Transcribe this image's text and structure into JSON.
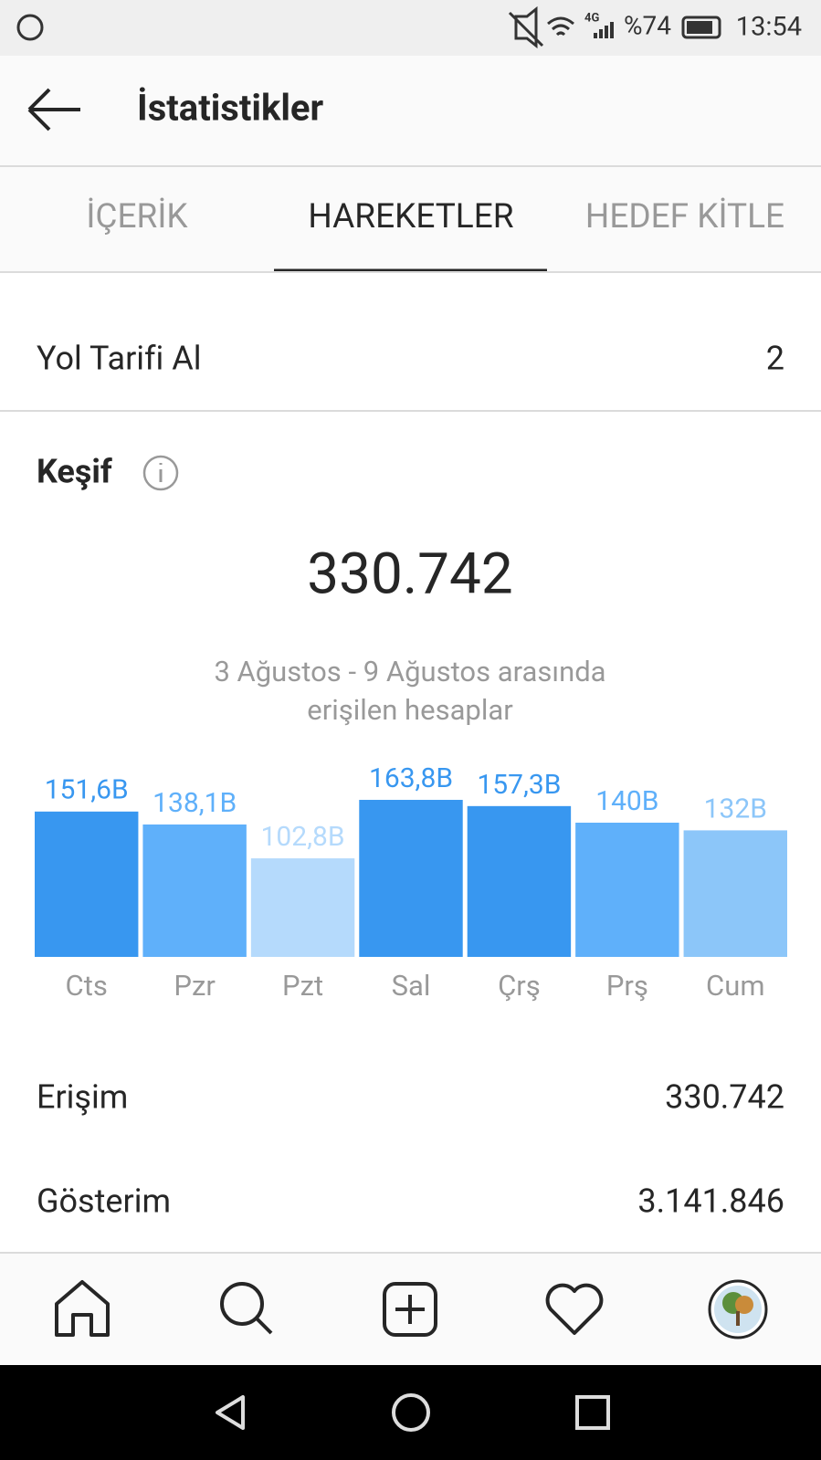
{
  "status_bar": {
    "network": "4G",
    "battery": "%74",
    "time": "13:54"
  },
  "header": {
    "title": "İstatistikler"
  },
  "tabs": [
    "İÇERİK",
    "HAREKETLER",
    "HEDEF KİTLE"
  ],
  "directions": {
    "label": "Yol Tarifi Al",
    "value": "2"
  },
  "discovery": {
    "title": "Keşif",
    "total": "330.742",
    "subtitle_lines": [
      "3 Ağustos - 9 Ağustos arasında",
      "erişilen hesaplar"
    ]
  },
  "chart_data": {
    "type": "bar",
    "categories": [
      "Cts",
      "Pzr",
      "Pzt",
      "Sal",
      "Çrş",
      "Prş",
      "Cum"
    ],
    "values": [
      151.6,
      138.1,
      102.8,
      163.8,
      157.3,
      140,
      132
    ],
    "value_labels": [
      "151,6B",
      "138,1B",
      "102,8B",
      "163,8B",
      "157,3B",
      "140B",
      "132B"
    ],
    "colors": [
      "#3897f0",
      "#5fb0fa",
      "#b5dafc",
      "#3897f0",
      "#3897f0",
      "#5fb0fa",
      "#8cc6f9"
    ]
  },
  "stats": [
    {
      "label": "Erişim",
      "value": "330.742"
    },
    {
      "label": "Gösterim",
      "value": "3.141.846"
    }
  ]
}
